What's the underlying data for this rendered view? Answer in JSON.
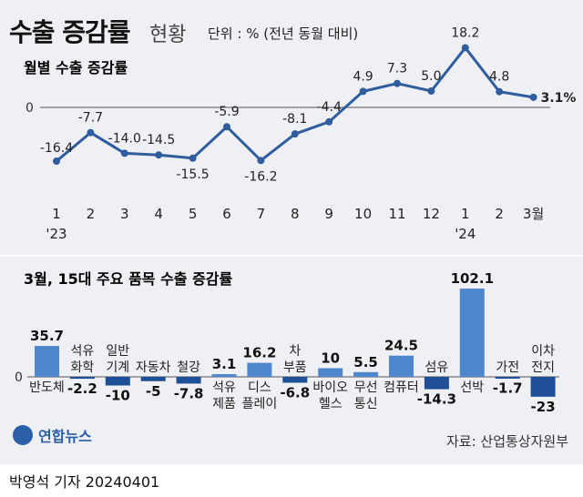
{
  "header": {
    "title": "수출 증감률",
    "title_suffix": "현황",
    "unit_note": "단위 : % (전년 동월 대비)"
  },
  "footer": {
    "credit": "박영석 기자  20240401",
    "source": "자료: 산업통상자원부",
    "logo_text": "연합뉴스"
  },
  "colors": {
    "line": "#2f5d9e",
    "bar_positive": "#4f87cf",
    "bar_negative": "#1f4f96",
    "baseline": "#555555"
  },
  "chart_data": [
    {
      "type": "line",
      "title": "월별 수출 증감률",
      "zero_label": "0",
      "x": [
        "1",
        "2",
        "3",
        "4",
        "5",
        "6",
        "7",
        "8",
        "9",
        "10",
        "11",
        "12",
        "1",
        "2",
        "3월"
      ],
      "year_labels": [
        {
          "index": 0,
          "text": "'23"
        },
        {
          "index": 12,
          "text": "'24"
        }
      ],
      "series": [
        {
          "values": [
            -16.4,
            -7.7,
            -14.0,
            -14.5,
            -15.5,
            -5.9,
            -16.2,
            -8.1,
            -4.4,
            4.9,
            7.3,
            5.0,
            18.2,
            4.8,
            3.1
          ],
          "labels": [
            "-16.4",
            "-7.7",
            "-14.0",
            "-14.5",
            "-15.5",
            "-5.9",
            "-16.2",
            "-8.1",
            "-4.4",
            "4.9",
            "7.3",
            "5.0",
            "18.2",
            "4.8",
            "3.1%"
          ]
        }
      ],
      "ylim": [
        -20,
        22
      ],
      "grid": false
    },
    {
      "type": "bar",
      "title": "3월, 15대 주요 품목 수출 증감률",
      "zero_label": "0",
      "categories": [
        "반도체",
        "석유 화학",
        "일반 기계",
        "자동차",
        "철강",
        "석유 제품",
        "디스 플레이",
        "차 부품",
        "바이오 헬스",
        "무선 통신",
        "컴퓨터",
        "섬유",
        "선박",
        "가전",
        "이차 전지"
      ],
      "values": [
        35.7,
        -2.2,
        -10,
        -5,
        -7.8,
        3.1,
        16.2,
        -6.8,
        10,
        5.5,
        24.5,
        -14.3,
        102.1,
        -1.7,
        -23
      ],
      "value_labels": [
        "35.7",
        "-2.2",
        "-10",
        "-5",
        "-7.8",
        "3.1",
        "16.2",
        "-6.8",
        "10",
        "5.5",
        "24.5",
        "-14.3",
        "102.1",
        "-1.7",
        "-23"
      ],
      "grid": false
    }
  ]
}
